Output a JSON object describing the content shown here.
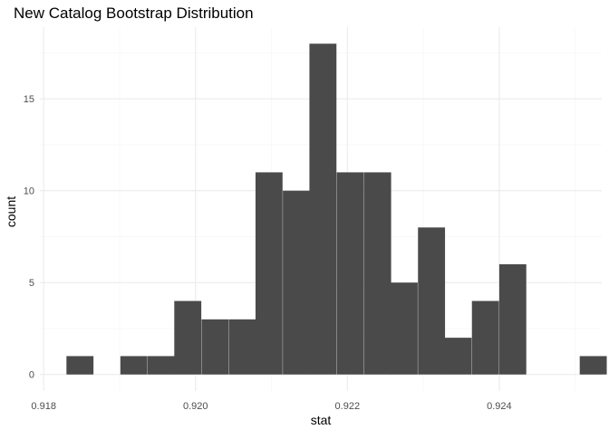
{
  "chart_data": {
    "type": "bar",
    "title": "New Catalog Bootstrap Distribution",
    "xlabel": "stat",
    "ylabel": "count",
    "xlim": [
      0.91795,
      0.92535
    ],
    "ylim": [
      -0.9,
      18.9
    ],
    "x_ticks": [
      {
        "value": 0.918,
        "label": "0.918"
      },
      {
        "value": 0.92,
        "label": "0.920"
      },
      {
        "value": 0.922,
        "label": "0.922"
      },
      {
        "value": 0.924,
        "label": "0.924"
      }
    ],
    "y_ticks": [
      {
        "value": 0,
        "label": "0"
      },
      {
        "value": 5,
        "label": "5"
      },
      {
        "value": 10,
        "label": "10"
      },
      {
        "value": 15,
        "label": "15"
      }
    ],
    "bin_width": 0.000356,
    "bins": [
      {
        "start": 0.9183,
        "count": 1
      },
      {
        "start": 0.91866,
        "count": 0
      },
      {
        "start": 0.91901,
        "count": 1
      },
      {
        "start": 0.91937,
        "count": 1
      },
      {
        "start": 0.91972,
        "count": 4
      },
      {
        "start": 0.92008,
        "count": 3
      },
      {
        "start": 0.92044,
        "count": 3
      },
      {
        "start": 0.92079,
        "count": 11
      },
      {
        "start": 0.92115,
        "count": 10
      },
      {
        "start": 0.9215,
        "count": 18
      },
      {
        "start": 0.92186,
        "count": 11
      },
      {
        "start": 0.92222,
        "count": 11
      },
      {
        "start": 0.92257,
        "count": 5
      },
      {
        "start": 0.92293,
        "count": 8
      },
      {
        "start": 0.92328,
        "count": 2
      },
      {
        "start": 0.92364,
        "count": 4
      },
      {
        "start": 0.924,
        "count": 6
      },
      {
        "start": 0.92435,
        "count": 0
      },
      {
        "start": 0.92471,
        "count": 0
      },
      {
        "start": 0.92506,
        "count": 1
      }
    ],
    "bar_color": "#4a4a4a",
    "grid": true,
    "grid_major_color": "#ebebeb",
    "grid_minor_color": "#f5f5f5",
    "legend": "none"
  }
}
